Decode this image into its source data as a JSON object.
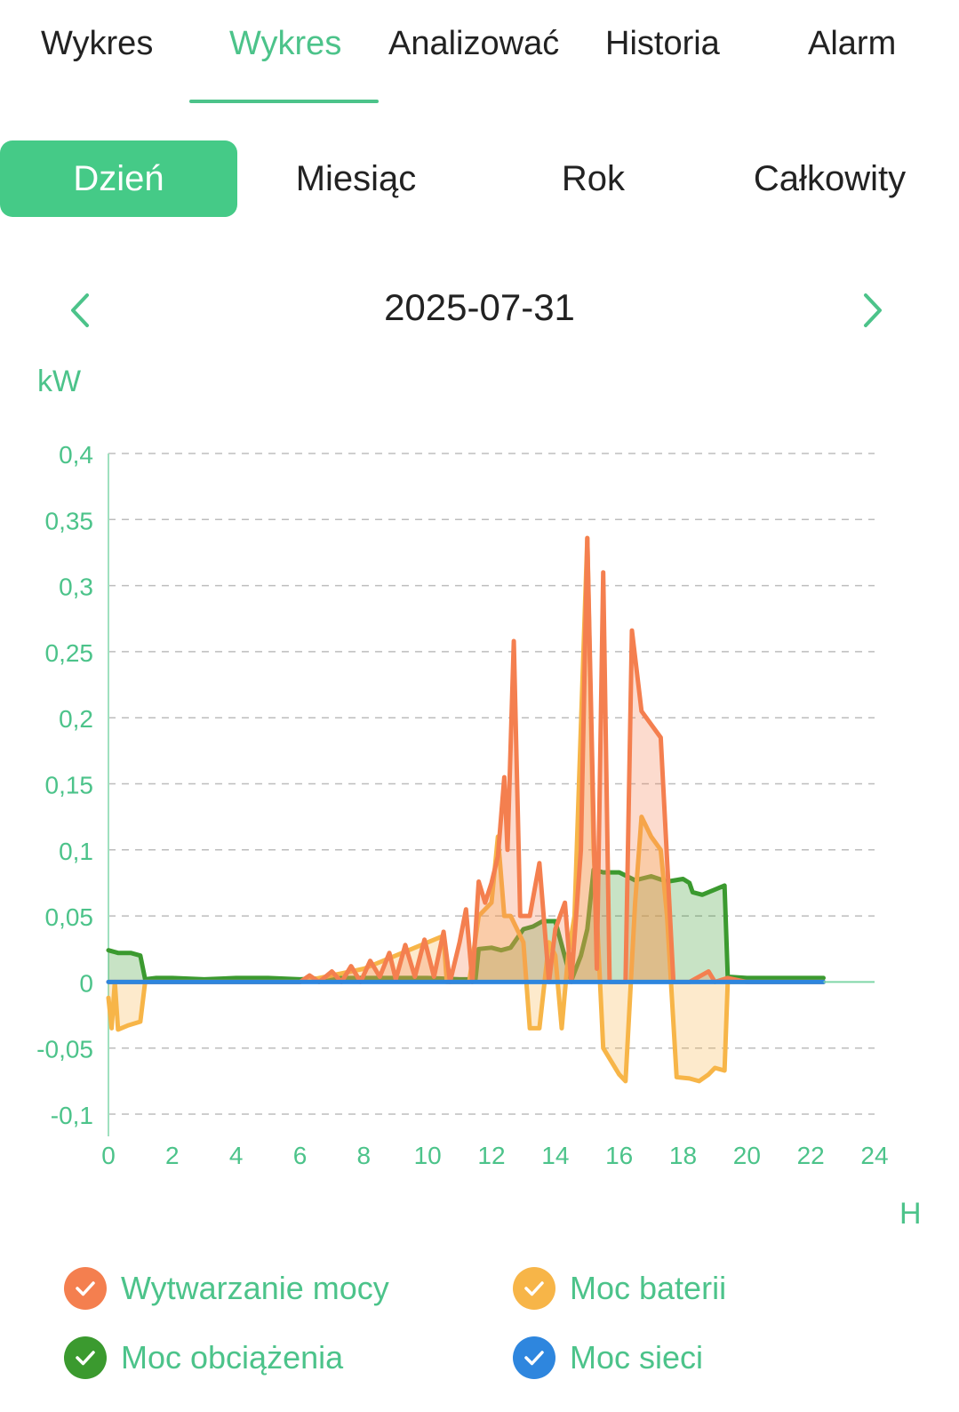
{
  "tabs": [
    {
      "label": "Wykres",
      "active": false
    },
    {
      "label": "Wykres",
      "active": true
    },
    {
      "label": "Analizować",
      "active": false
    },
    {
      "label": "Historia",
      "active": false
    },
    {
      "label": "Alarm",
      "active": false
    }
  ],
  "periods": [
    {
      "label": "Dzień",
      "active": true
    },
    {
      "label": "Miesiąc",
      "active": false
    },
    {
      "label": "Rok",
      "active": false
    },
    {
      "label": "Całkowity",
      "active": false
    }
  ],
  "date": "2025-07-31",
  "icons": {
    "prev": "chevron-left-icon",
    "next": "chevron-right-icon",
    "check": "check-icon"
  },
  "colors": {
    "accent": "#4CC38A",
    "production": "#F47F4F",
    "battery": "#F7B548",
    "load": "#3B9A2F",
    "grid": "#2E86DE"
  },
  "chart_data": {
    "type": "area",
    "ylabel": "kW",
    "xlabel": "H",
    "xlim": [
      0,
      24
    ],
    "ylim": [
      -0.1,
      0.4
    ],
    "x_ticks": [
      "0",
      "2",
      "4",
      "6",
      "8",
      "10",
      "12",
      "14",
      "16",
      "18",
      "20",
      "22",
      "24"
    ],
    "y_ticks": [
      "-0,1",
      "-0,05",
      "0",
      "0,05",
      "0,1",
      "0,15",
      "0,2",
      "0,25",
      "0,3",
      "0,35",
      "0,4"
    ],
    "grid": "horizontal-dashed",
    "legend_position": "bottom",
    "series": [
      {
        "name": "Moc obciążenia",
        "color": "#3B9A2F",
        "points": [
          [
            0,
            0.024
          ],
          [
            0.3,
            0.022
          ],
          [
            0.7,
            0.022
          ],
          [
            1.0,
            0.02
          ],
          [
            1.15,
            0.002
          ],
          [
            1.5,
            0.003
          ],
          [
            2,
            0.003
          ],
          [
            3,
            0.002
          ],
          [
            4,
            0.003
          ],
          [
            5,
            0.003
          ],
          [
            6,
            0.002
          ],
          [
            7,
            0.003
          ],
          [
            8,
            0.003
          ],
          [
            9,
            0.003
          ],
          [
            10,
            0.003
          ],
          [
            11,
            0.002
          ],
          [
            11.5,
            0.002
          ],
          [
            11.6,
            0.025
          ],
          [
            12,
            0.026
          ],
          [
            12.3,
            0.024
          ],
          [
            12.6,
            0.026
          ],
          [
            13,
            0.04
          ],
          [
            13.3,
            0.042
          ],
          [
            13.6,
            0.046
          ],
          [
            14,
            0.046
          ],
          [
            14.5,
            0.001
          ],
          [
            14.8,
            0.02
          ],
          [
            15.0,
            0.04
          ],
          [
            15.2,
            0.085
          ],
          [
            15.5,
            0.083
          ],
          [
            16,
            0.083
          ],
          [
            16.5,
            0.077
          ],
          [
            17,
            0.08
          ],
          [
            17.5,
            0.076
          ],
          [
            18,
            0.078
          ],
          [
            18.2,
            0.075
          ],
          [
            18.3,
            0.068
          ],
          [
            18.6,
            0.066
          ],
          [
            19,
            0.07
          ],
          [
            19.3,
            0.073
          ],
          [
            19.4,
            0.004
          ],
          [
            20,
            0.003
          ],
          [
            21,
            0.003
          ],
          [
            22,
            0.003
          ],
          [
            22.4,
            0.003
          ]
        ]
      },
      {
        "name": "Moc baterii",
        "color": "#F7B548",
        "points": [
          [
            0,
            -0.012
          ],
          [
            0.1,
            -0.035
          ],
          [
            0.2,
            0.0
          ],
          [
            0.3,
            -0.036
          ],
          [
            0.6,
            -0.033
          ],
          [
            1.0,
            -0.03
          ],
          [
            1.15,
            0
          ],
          [
            6,
            0
          ],
          [
            7,
            0.005
          ],
          [
            8,
            0.01
          ],
          [
            9,
            0.02
          ],
          [
            10,
            0.03
          ],
          [
            10.5,
            0.035
          ],
          [
            10.6,
            0
          ],
          [
            11.3,
            0
          ],
          [
            11.6,
            0.05
          ],
          [
            12,
            0.06
          ],
          [
            12.2,
            0.11
          ],
          [
            12.4,
            0.05
          ],
          [
            12.6,
            0.05
          ],
          [
            13,
            0.03
          ],
          [
            13.2,
            -0.035
          ],
          [
            13.5,
            -0.035
          ],
          [
            13.8,
            0.03
          ],
          [
            14,
            0.02
          ],
          [
            14.2,
            -0.035
          ],
          [
            14.4,
            0.02
          ],
          [
            14.6,
            0.05
          ],
          [
            15.0,
            0.336
          ],
          [
            15.2,
            0.1
          ],
          [
            15.5,
            -0.05
          ],
          [
            16.0,
            -0.07
          ],
          [
            16.2,
            -0.075
          ],
          [
            16.5,
            0.06
          ],
          [
            16.7,
            0.125
          ],
          [
            17.0,
            0.11
          ],
          [
            17.3,
            0.1
          ],
          [
            17.5,
            0.05
          ],
          [
            17.8,
            -0.072
          ],
          [
            18.2,
            -0.073
          ],
          [
            18.5,
            -0.075
          ],
          [
            18.8,
            -0.07
          ],
          [
            19.0,
            -0.065
          ],
          [
            19.3,
            -0.067
          ],
          [
            19.4,
            0
          ],
          [
            22.4,
            0
          ]
        ]
      },
      {
        "name": "Wytwarzanie mocy",
        "color": "#F47F4F",
        "points": [
          [
            0,
            0
          ],
          [
            6,
            0
          ],
          [
            6.3,
            0.005
          ],
          [
            6.6,
            0.0
          ],
          [
            7,
            0.008
          ],
          [
            7.3,
            0.0
          ],
          [
            7.6,
            0.012
          ],
          [
            7.9,
            0.0
          ],
          [
            8.2,
            0.016
          ],
          [
            8.5,
            0.004
          ],
          [
            8.8,
            0.022
          ],
          [
            9.0,
            0.002
          ],
          [
            9.3,
            0.028
          ],
          [
            9.6,
            0.004
          ],
          [
            9.9,
            0.032
          ],
          [
            10.2,
            0.004
          ],
          [
            10.5,
            0.038
          ],
          [
            10.7,
            0.0
          ],
          [
            11.0,
            0.03
          ],
          [
            11.2,
            0.055
          ],
          [
            11.4,
            0.0
          ],
          [
            11.6,
            0.076
          ],
          [
            11.8,
            0.06
          ],
          [
            12.0,
            0.075
          ],
          [
            12.2,
            0.095
          ],
          [
            12.4,
            0.155
          ],
          [
            12.5,
            0.1
          ],
          [
            12.7,
            0.258
          ],
          [
            12.9,
            0.05
          ],
          [
            13.2,
            0.05
          ],
          [
            13.5,
            0.09
          ],
          [
            13.8,
            0.0
          ],
          [
            14.0,
            0.04
          ],
          [
            14.3,
            0.06
          ],
          [
            14.5,
            0.0
          ],
          [
            14.8,
            0.1
          ],
          [
            15.0,
            0.336
          ],
          [
            15.3,
            0.01
          ],
          [
            15.5,
            0.31
          ],
          [
            15.7,
            0.0
          ],
          [
            16.2,
            0.0
          ],
          [
            16.4,
            0.266
          ],
          [
            16.7,
            0.205
          ],
          [
            17.3,
            0.185
          ],
          [
            17.7,
            0.0
          ],
          [
            18.2,
            0.0
          ],
          [
            18.8,
            0.008
          ],
          [
            19.0,
            0.0
          ],
          [
            19.4,
            0.003
          ],
          [
            20,
            0.0
          ],
          [
            22.4,
            0.0
          ]
        ]
      },
      {
        "name": "Moc sieci",
        "color": "#2E86DE",
        "points": [
          [
            0,
            0
          ],
          [
            22.4,
            0
          ]
        ]
      }
    ]
  }
}
